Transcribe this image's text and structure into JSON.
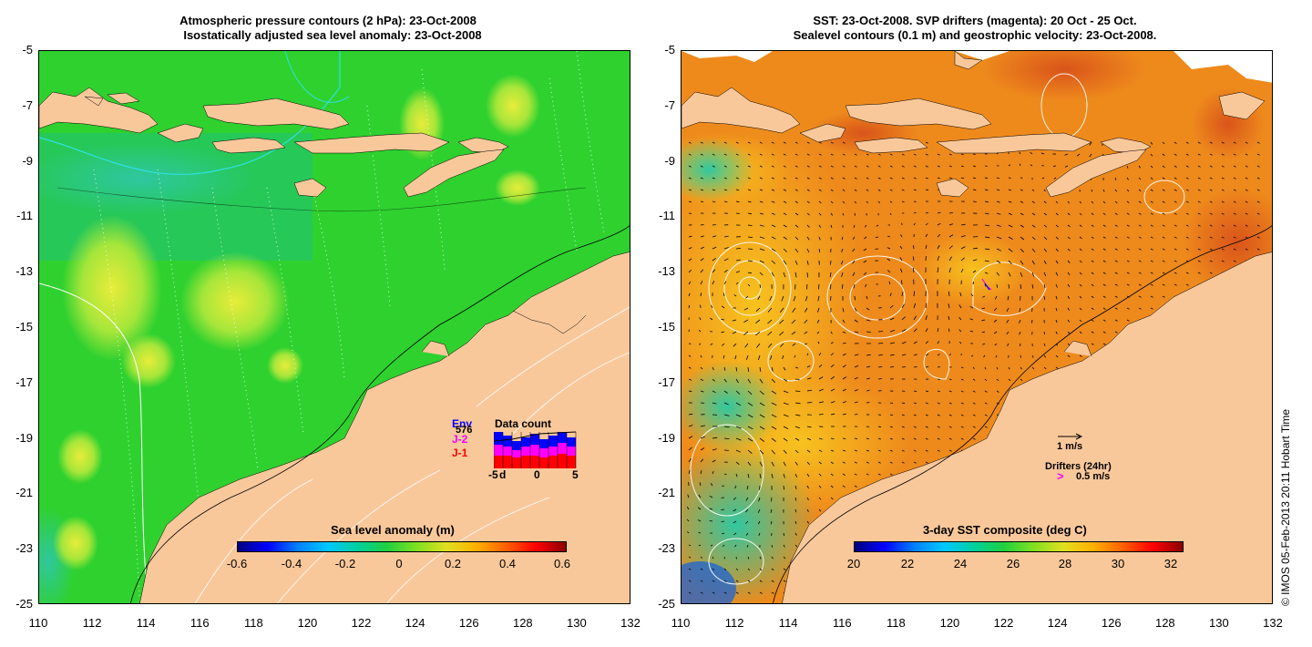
{
  "left": {
    "title1": "Atmospheric pressure contours (2 hPa): 23-Oct-2008",
    "title2": "Isostatically adjusted sea level anomaly: 23-Oct-2008",
    "colorbar_title": "Sea level anomaly (m)",
    "colorbar_ticks": [
      "-0.6",
      "-0.4",
      "-0.2",
      "0",
      "0.2",
      "0.4",
      "0.6"
    ],
    "legend": {
      "sat1": "Env",
      "sat2": "J-2",
      "sat3": "J-1",
      "count_label": "576",
      "data_count_title": "Data count",
      "hist_ticks": [
        "-5",
        "d",
        "0",
        "5"
      ]
    }
  },
  "right": {
    "title1": "SST: 23-Oct-2008. SVP drifters (magenta): 20 Oct - 25 Oct.",
    "title2": "Sealevel contours (0.1 m) and geostrophic velocity: 23-Oct-2008.",
    "colorbar_title": "3-day SST composite (deg C)",
    "colorbar_ticks": [
      "20",
      "22",
      "24",
      "26",
      "28",
      "30",
      "32"
    ],
    "velocity_scale": "1 m/s",
    "drifter_title": "Drifters (24hr)",
    "drifter_scale": "0.5 m/s"
  },
  "axes": {
    "y_ticks": [
      "-5",
      "-7",
      "-9",
      "-11",
      "-13",
      "-15",
      "-17",
      "-19",
      "-21",
      "-23",
      "-25"
    ],
    "x_ticks": [
      "110",
      "112",
      "114",
      "116",
      "118",
      "120",
      "122",
      "124",
      "126",
      "128",
      "130",
      "132"
    ],
    "xlim": [
      110,
      132
    ],
    "ylim": [
      -25,
      -5
    ]
  },
  "credit": "© IMOS 05-Feb-2013 20:11 Hobart Time",
  "colors": {
    "land": "#f9c89a",
    "ocean_left": "#2fd12f",
    "ocean_right": "#ee8a1c"
  }
}
